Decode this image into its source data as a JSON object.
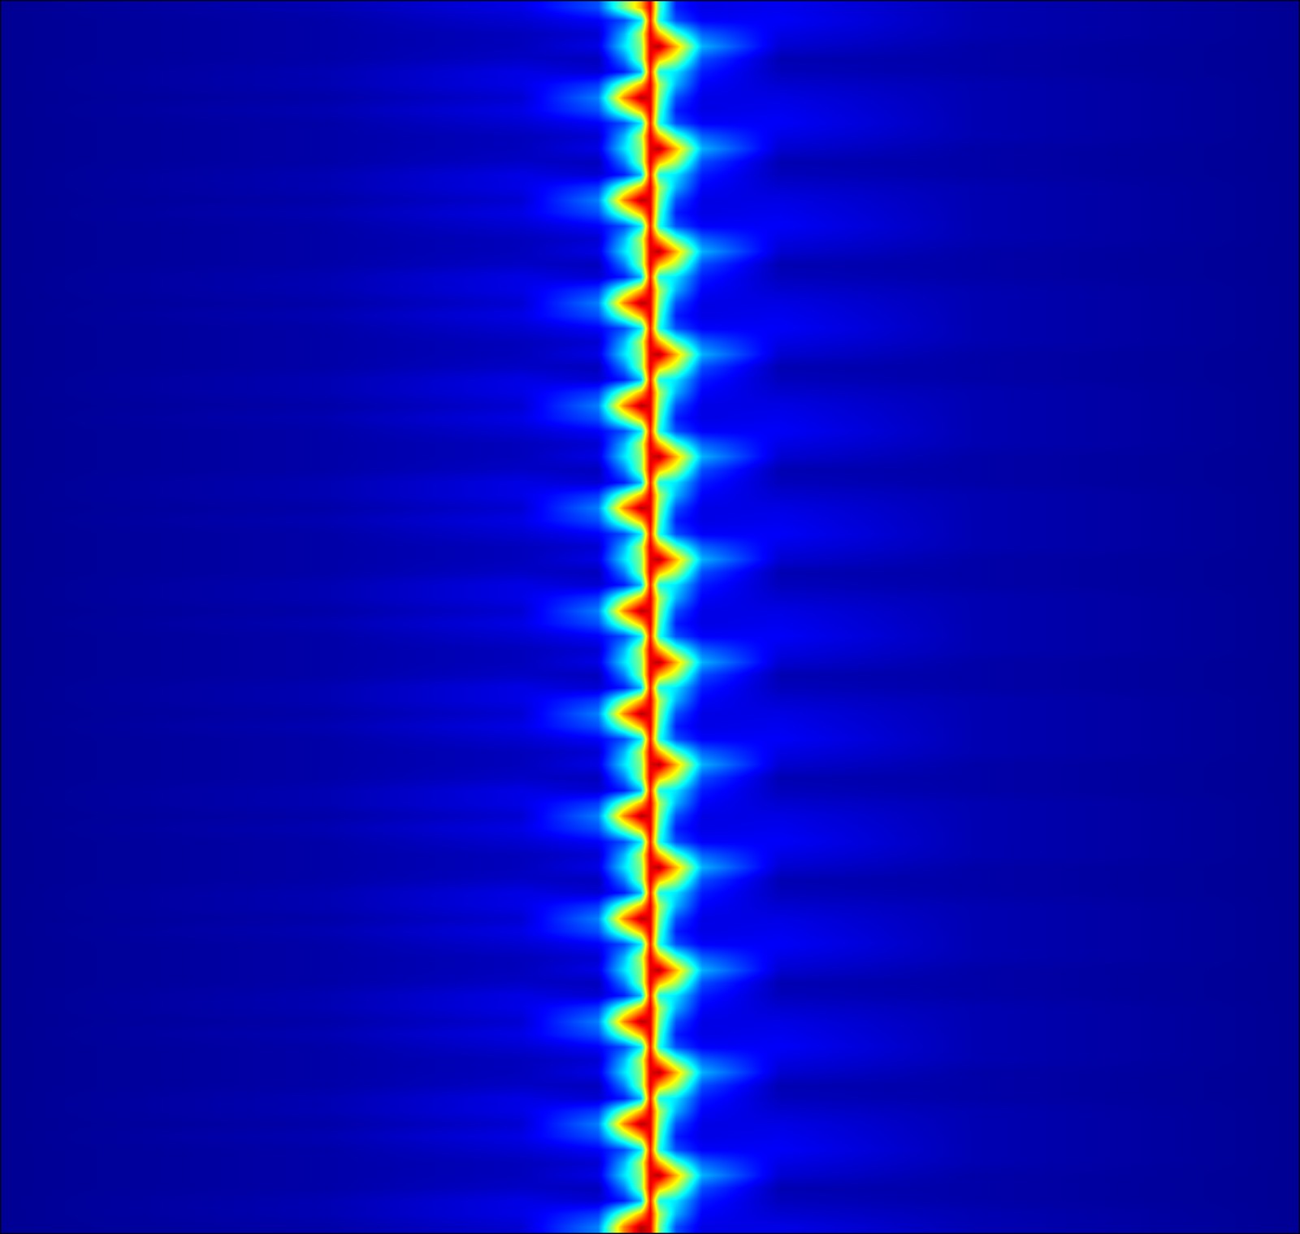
{
  "chart_data": {
    "type": "heatmap",
    "x": [
      0,
      25,
      40,
      46,
      48,
      49.3,
      50,
      50.7,
      52,
      54,
      60,
      75,
      100
    ],
    "y": [
      0,
      1,
      2,
      3,
      4,
      5,
      6,
      7,
      8,
      9,
      10,
      11,
      12,
      13,
      14,
      15,
      16,
      17,
      18,
      19,
      20,
      21,
      22,
      23,
      24,
      25,
      26,
      27,
      28,
      29,
      30,
      31,
      32,
      33,
      34,
      35,
      36,
      37,
      38,
      39,
      40,
      41,
      42,
      43,
      44,
      45,
      46,
      47,
      48,
      49,
      50,
      51,
      52,
      53,
      54,
      55,
      56,
      57,
      58,
      59,
      60,
      61,
      62,
      63,
      64,
      65,
      66,
      67,
      68,
      69,
      70,
      71,
      72,
      73,
      74,
      75,
      76,
      77,
      78,
      79,
      80,
      81,
      82,
      83,
      84,
      85,
      86,
      87,
      88,
      89,
      90,
      91,
      92,
      93,
      94,
      95
    ],
    "z": [
      [
        0.02,
        0.04,
        0.08,
        0.25,
        0.75,
        0.95,
        0.9,
        0.5,
        0.2,
        0.1,
        0.1,
        0.05,
        0.02
      ],
      [
        0.02,
        0.05,
        0.1,
        0.18,
        0.5,
        0.7,
        0.9,
        0.55,
        0.3,
        0.12,
        0.08,
        0.05,
        0.02
      ],
      [
        0.02,
        0.05,
        0.1,
        0.08,
        0.15,
        0.3,
        0.85,
        0.4,
        0.35,
        0.15,
        0.06,
        0.04,
        0.02
      ],
      [
        0.02,
        0.04,
        0.07,
        0.06,
        0.25,
        0.5,
        0.9,
        0.7,
        0.55,
        0.2,
        0.05,
        0.04,
        0.02
      ],
      [
        0.02,
        0.04,
        0.06,
        0.1,
        0.35,
        0.5,
        0.9,
        0.95,
        0.7,
        0.3,
        0.08,
        0.04,
        0.02
      ],
      [
        0.02,
        0.04,
        0.06,
        0.08,
        0.3,
        0.55,
        0.9,
        0.7,
        0.45,
        0.22,
        0.1,
        0.05,
        0.02
      ],
      [
        0.02,
        0.04,
        0.08,
        0.12,
        0.2,
        0.35,
        0.85,
        0.4,
        0.2,
        0.12,
        0.12,
        0.05,
        0.02
      ],
      [
        0.02,
        0.05,
        0.1,
        0.2,
        0.5,
        0.7,
        0.9,
        0.45,
        0.15,
        0.1,
        0.11,
        0.05,
        0.02
      ],
      [
        0.02,
        0.04,
        0.08,
        0.25,
        0.75,
        0.95,
        0.9,
        0.5,
        0.2,
        0.1,
        0.1,
        0.05,
        0.02
      ],
      [
        0.02,
        0.05,
        0.1,
        0.18,
        0.5,
        0.7,
        0.9,
        0.55,
        0.3,
        0.12,
        0.08,
        0.05,
        0.02
      ],
      [
        0.02,
        0.05,
        0.1,
        0.08,
        0.15,
        0.3,
        0.85,
        0.4,
        0.35,
        0.15,
        0.06,
        0.04,
        0.02
      ],
      [
        0.02,
        0.04,
        0.07,
        0.06,
        0.25,
        0.5,
        0.9,
        0.7,
        0.55,
        0.2,
        0.05,
        0.04,
        0.02
      ],
      [
        0.02,
        0.04,
        0.06,
        0.1,
        0.35,
        0.5,
        0.9,
        0.95,
        0.7,
        0.3,
        0.08,
        0.04,
        0.02
      ],
      [
        0.02,
        0.04,
        0.06,
        0.08,
        0.3,
        0.55,
        0.9,
        0.7,
        0.45,
        0.22,
        0.1,
        0.05,
        0.02
      ],
      [
        0.02,
        0.04,
        0.08,
        0.12,
        0.2,
        0.35,
        0.85,
        0.4,
        0.2,
        0.12,
        0.12,
        0.05,
        0.02
      ],
      [
        0.02,
        0.05,
        0.1,
        0.2,
        0.5,
        0.7,
        0.9,
        0.45,
        0.15,
        0.1,
        0.11,
        0.05,
        0.02
      ],
      [
        0.02,
        0.04,
        0.08,
        0.25,
        0.75,
        0.95,
        0.9,
        0.5,
        0.2,
        0.1,
        0.1,
        0.05,
        0.02
      ],
      [
        0.02,
        0.05,
        0.1,
        0.18,
        0.5,
        0.7,
        0.9,
        0.55,
        0.3,
        0.12,
        0.08,
        0.05,
        0.02
      ],
      [
        0.02,
        0.05,
        0.1,
        0.08,
        0.15,
        0.3,
        0.85,
        0.4,
        0.35,
        0.15,
        0.06,
        0.04,
        0.02
      ],
      [
        0.02,
        0.04,
        0.07,
        0.06,
        0.25,
        0.5,
        0.9,
        0.7,
        0.55,
        0.2,
        0.05,
        0.04,
        0.02
      ],
      [
        0.02,
        0.04,
        0.06,
        0.1,
        0.35,
        0.5,
        0.9,
        0.95,
        0.7,
        0.3,
        0.08,
        0.04,
        0.02
      ],
      [
        0.02,
        0.04,
        0.06,
        0.08,
        0.3,
        0.55,
        0.9,
        0.7,
        0.45,
        0.22,
        0.1,
        0.05,
        0.02
      ],
      [
        0.02,
        0.04,
        0.08,
        0.12,
        0.2,
        0.35,
        0.85,
        0.4,
        0.2,
        0.12,
        0.12,
        0.05,
        0.02
      ],
      [
        0.02,
        0.05,
        0.1,
        0.2,
        0.5,
        0.7,
        0.9,
        0.45,
        0.15,
        0.1,
        0.11,
        0.05,
        0.02
      ],
      [
        0.02,
        0.04,
        0.08,
        0.25,
        0.75,
        0.95,
        0.9,
        0.5,
        0.2,
        0.1,
        0.1,
        0.05,
        0.02
      ],
      [
        0.02,
        0.05,
        0.1,
        0.18,
        0.5,
        0.7,
        0.9,
        0.55,
        0.3,
        0.12,
        0.08,
        0.05,
        0.02
      ],
      [
        0.02,
        0.05,
        0.1,
        0.08,
        0.15,
        0.3,
        0.85,
        0.4,
        0.35,
        0.15,
        0.06,
        0.04,
        0.02
      ],
      [
        0.02,
        0.04,
        0.07,
        0.06,
        0.25,
        0.5,
        0.9,
        0.7,
        0.55,
        0.2,
        0.05,
        0.04,
        0.02
      ],
      [
        0.02,
        0.04,
        0.06,
        0.1,
        0.35,
        0.5,
        0.9,
        0.95,
        0.7,
        0.3,
        0.08,
        0.04,
        0.02
      ],
      [
        0.02,
        0.04,
        0.06,
        0.08,
        0.3,
        0.55,
        0.9,
        0.7,
        0.45,
        0.22,
        0.1,
        0.05,
        0.02
      ],
      [
        0.02,
        0.04,
        0.08,
        0.12,
        0.2,
        0.35,
        0.85,
        0.4,
        0.2,
        0.12,
        0.12,
        0.05,
        0.02
      ],
      [
        0.02,
        0.05,
        0.1,
        0.2,
        0.5,
        0.7,
        0.9,
        0.45,
        0.15,
        0.1,
        0.11,
        0.05,
        0.02
      ],
      [
        0.02,
        0.04,
        0.08,
        0.25,
        0.75,
        0.95,
        0.9,
        0.5,
        0.2,
        0.1,
        0.1,
        0.05,
        0.02
      ],
      [
        0.02,
        0.05,
        0.1,
        0.18,
        0.5,
        0.7,
        0.9,
        0.55,
        0.3,
        0.12,
        0.08,
        0.05,
        0.02
      ],
      [
        0.02,
        0.05,
        0.1,
        0.08,
        0.15,
        0.3,
        0.85,
        0.4,
        0.35,
        0.15,
        0.06,
        0.04,
        0.02
      ],
      [
        0.02,
        0.04,
        0.07,
        0.06,
        0.25,
        0.5,
        0.9,
        0.7,
        0.55,
        0.2,
        0.05,
        0.04,
        0.02
      ],
      [
        0.02,
        0.04,
        0.06,
        0.1,
        0.35,
        0.5,
        0.9,
        0.95,
        0.7,
        0.3,
        0.08,
        0.04,
        0.02
      ],
      [
        0.02,
        0.04,
        0.06,
        0.08,
        0.3,
        0.55,
        0.9,
        0.7,
        0.45,
        0.22,
        0.1,
        0.05,
        0.02
      ],
      [
        0.02,
        0.04,
        0.08,
        0.12,
        0.2,
        0.35,
        0.85,
        0.4,
        0.2,
        0.12,
        0.12,
        0.05,
        0.02
      ],
      [
        0.02,
        0.05,
        0.1,
        0.2,
        0.5,
        0.7,
        0.9,
        0.45,
        0.15,
        0.1,
        0.11,
        0.05,
        0.02
      ],
      [
        0.02,
        0.04,
        0.08,
        0.25,
        0.75,
        0.95,
        0.9,
        0.5,
        0.2,
        0.1,
        0.1,
        0.05,
        0.02
      ],
      [
        0.02,
        0.05,
        0.1,
        0.18,
        0.5,
        0.7,
        0.9,
        0.55,
        0.3,
        0.12,
        0.08,
        0.05,
        0.02
      ],
      [
        0.02,
        0.05,
        0.1,
        0.08,
        0.15,
        0.3,
        0.85,
        0.4,
        0.35,
        0.15,
        0.06,
        0.04,
        0.02
      ],
      [
        0.02,
        0.04,
        0.07,
        0.06,
        0.25,
        0.5,
        0.9,
        0.7,
        0.55,
        0.2,
        0.05,
        0.04,
        0.02
      ],
      [
        0.02,
        0.04,
        0.06,
        0.1,
        0.35,
        0.5,
        0.9,
        0.95,
        0.7,
        0.3,
        0.08,
        0.04,
        0.02
      ],
      [
        0.02,
        0.04,
        0.06,
        0.08,
        0.3,
        0.55,
        0.9,
        0.7,
        0.45,
        0.22,
        0.1,
        0.05,
        0.02
      ],
      [
        0.02,
        0.04,
        0.08,
        0.12,
        0.2,
        0.35,
        0.85,
        0.4,
        0.2,
        0.12,
        0.12,
        0.05,
        0.02
      ],
      [
        0.02,
        0.05,
        0.1,
        0.2,
        0.5,
        0.7,
        0.9,
        0.45,
        0.15,
        0.1,
        0.11,
        0.05,
        0.02
      ],
      [
        0.02,
        0.04,
        0.08,
        0.25,
        0.75,
        0.95,
        0.9,
        0.5,
        0.2,
        0.1,
        0.1,
        0.05,
        0.02
      ],
      [
        0.02,
        0.05,
        0.1,
        0.18,
        0.5,
        0.7,
        0.9,
        0.55,
        0.3,
        0.12,
        0.08,
        0.05,
        0.02
      ],
      [
        0.02,
        0.05,
        0.1,
        0.08,
        0.15,
        0.3,
        0.85,
        0.4,
        0.35,
        0.15,
        0.06,
        0.04,
        0.02
      ],
      [
        0.02,
        0.04,
        0.07,
        0.06,
        0.25,
        0.5,
        0.9,
        0.7,
        0.55,
        0.2,
        0.05,
        0.04,
        0.02
      ],
      [
        0.02,
        0.04,
        0.06,
        0.1,
        0.35,
        0.5,
        0.9,
        0.95,
        0.7,
        0.3,
        0.08,
        0.04,
        0.02
      ],
      [
        0.02,
        0.04,
        0.06,
        0.08,
        0.3,
        0.55,
        0.9,
        0.7,
        0.45,
        0.22,
        0.1,
        0.05,
        0.02
      ],
      [
        0.02,
        0.04,
        0.08,
        0.12,
        0.2,
        0.35,
        0.85,
        0.4,
        0.2,
        0.12,
        0.12,
        0.05,
        0.02
      ],
      [
        0.02,
        0.05,
        0.1,
        0.2,
        0.5,
        0.7,
        0.9,
        0.45,
        0.15,
        0.1,
        0.11,
        0.05,
        0.02
      ],
      [
        0.02,
        0.04,
        0.08,
        0.25,
        0.75,
        0.95,
        0.9,
        0.5,
        0.2,
        0.1,
        0.1,
        0.05,
        0.02
      ],
      [
        0.02,
        0.05,
        0.1,
        0.18,
        0.5,
        0.7,
        0.9,
        0.55,
        0.3,
        0.12,
        0.08,
        0.05,
        0.02
      ],
      [
        0.02,
        0.05,
        0.1,
        0.08,
        0.15,
        0.3,
        0.85,
        0.4,
        0.35,
        0.15,
        0.06,
        0.04,
        0.02
      ],
      [
        0.02,
        0.04,
        0.07,
        0.06,
        0.25,
        0.5,
        0.9,
        0.7,
        0.55,
        0.2,
        0.05,
        0.04,
        0.02
      ],
      [
        0.02,
        0.04,
        0.06,
        0.1,
        0.35,
        0.5,
        0.9,
        0.95,
        0.7,
        0.3,
        0.08,
        0.04,
        0.02
      ],
      [
        0.02,
        0.04,
        0.06,
        0.08,
        0.3,
        0.55,
        0.9,
        0.7,
        0.45,
        0.22,
        0.1,
        0.05,
        0.02
      ],
      [
        0.02,
        0.04,
        0.08,
        0.12,
        0.2,
        0.35,
        0.85,
        0.4,
        0.2,
        0.12,
        0.12,
        0.05,
        0.02
      ],
      [
        0.02,
        0.05,
        0.1,
        0.2,
        0.5,
        0.7,
        0.9,
        0.45,
        0.15,
        0.1,
        0.11,
        0.05,
        0.02
      ],
      [
        0.02,
        0.04,
        0.08,
        0.25,
        0.75,
        0.95,
        0.9,
        0.5,
        0.2,
        0.1,
        0.1,
        0.05,
        0.02
      ],
      [
        0.02,
        0.05,
        0.1,
        0.18,
        0.5,
        0.7,
        0.9,
        0.55,
        0.3,
        0.12,
        0.08,
        0.05,
        0.02
      ],
      [
        0.02,
        0.05,
        0.1,
        0.08,
        0.15,
        0.3,
        0.85,
        0.4,
        0.35,
        0.15,
        0.06,
        0.04,
        0.02
      ],
      [
        0.02,
        0.04,
        0.07,
        0.06,
        0.25,
        0.5,
        0.9,
        0.7,
        0.55,
        0.2,
        0.05,
        0.04,
        0.02
      ],
      [
        0.02,
        0.04,
        0.06,
        0.1,
        0.35,
        0.5,
        0.9,
        0.95,
        0.7,
        0.3,
        0.08,
        0.04,
        0.02
      ],
      [
        0.02,
        0.04,
        0.06,
        0.08,
        0.3,
        0.55,
        0.9,
        0.7,
        0.45,
        0.22,
        0.1,
        0.05,
        0.02
      ],
      [
        0.02,
        0.04,
        0.08,
        0.12,
        0.2,
        0.35,
        0.85,
        0.4,
        0.2,
        0.12,
        0.12,
        0.05,
        0.02
      ],
      [
        0.02,
        0.05,
        0.1,
        0.2,
        0.5,
        0.7,
        0.9,
        0.45,
        0.15,
        0.1,
        0.11,
        0.05,
        0.02
      ],
      [
        0.02,
        0.04,
        0.08,
        0.25,
        0.75,
        0.95,
        0.9,
        0.5,
        0.2,
        0.1,
        0.1,
        0.05,
        0.02
      ],
      [
        0.02,
        0.05,
        0.1,
        0.18,
        0.5,
        0.7,
        0.9,
        0.55,
        0.3,
        0.12,
        0.08,
        0.05,
        0.02
      ],
      [
        0.02,
        0.05,
        0.1,
        0.08,
        0.15,
        0.3,
        0.85,
        0.4,
        0.35,
        0.15,
        0.06,
        0.04,
        0.02
      ],
      [
        0.02,
        0.04,
        0.07,
        0.06,
        0.25,
        0.5,
        0.9,
        0.7,
        0.55,
        0.2,
        0.05,
        0.04,
        0.02
      ],
      [
        0.02,
        0.04,
        0.06,
        0.1,
        0.35,
        0.5,
        0.9,
        0.95,
        0.7,
        0.3,
        0.08,
        0.04,
        0.02
      ],
      [
        0.02,
        0.04,
        0.06,
        0.08,
        0.3,
        0.55,
        0.9,
        0.7,
        0.45,
        0.22,
        0.1,
        0.05,
        0.02
      ],
      [
        0.02,
        0.04,
        0.08,
        0.12,
        0.2,
        0.35,
        0.85,
        0.4,
        0.2,
        0.12,
        0.12,
        0.05,
        0.02
      ],
      [
        0.02,
        0.05,
        0.1,
        0.2,
        0.5,
        0.7,
        0.9,
        0.45,
        0.15,
        0.1,
        0.11,
        0.05,
        0.02
      ],
      [
        0.02,
        0.04,
        0.08,
        0.25,
        0.75,
        0.95,
        0.9,
        0.5,
        0.2,
        0.1,
        0.1,
        0.05,
        0.02
      ],
      [
        0.02,
        0.05,
        0.1,
        0.18,
        0.5,
        0.7,
        0.9,
        0.55,
        0.3,
        0.12,
        0.08,
        0.05,
        0.02
      ],
      [
        0.02,
        0.05,
        0.1,
        0.08,
        0.15,
        0.3,
        0.85,
        0.4,
        0.35,
        0.15,
        0.06,
        0.04,
        0.02
      ],
      [
        0.02,
        0.04,
        0.07,
        0.06,
        0.25,
        0.5,
        0.9,
        0.7,
        0.55,
        0.2,
        0.05,
        0.04,
        0.02
      ],
      [
        0.02,
        0.04,
        0.06,
        0.1,
        0.35,
        0.5,
        0.9,
        0.95,
        0.7,
        0.3,
        0.08,
        0.04,
        0.02
      ],
      [
        0.02,
        0.04,
        0.06,
        0.08,
        0.3,
        0.55,
        0.9,
        0.7,
        0.45,
        0.22,
        0.1,
        0.05,
        0.02
      ],
      [
        0.02,
        0.04,
        0.08,
        0.12,
        0.2,
        0.35,
        0.85,
        0.4,
        0.2,
        0.12,
        0.12,
        0.05,
        0.02
      ],
      [
        0.02,
        0.05,
        0.1,
        0.2,
        0.5,
        0.7,
        0.9,
        0.45,
        0.15,
        0.1,
        0.11,
        0.05,
        0.02
      ],
      [
        0.02,
        0.04,
        0.08,
        0.25,
        0.75,
        0.95,
        0.9,
        0.5,
        0.2,
        0.1,
        0.1,
        0.05,
        0.02
      ],
      [
        0.02,
        0.05,
        0.1,
        0.18,
        0.5,
        0.7,
        0.9,
        0.55,
        0.3,
        0.12,
        0.08,
        0.05,
        0.02
      ],
      [
        0.02,
        0.05,
        0.1,
        0.08,
        0.15,
        0.3,
        0.85,
        0.4,
        0.35,
        0.15,
        0.06,
        0.04,
        0.02
      ],
      [
        0.02,
        0.04,
        0.07,
        0.06,
        0.25,
        0.5,
        0.9,
        0.7,
        0.55,
        0.2,
        0.05,
        0.04,
        0.02
      ],
      [
        0.02,
        0.04,
        0.06,
        0.1,
        0.35,
        0.5,
        0.9,
        0.95,
        0.7,
        0.3,
        0.08,
        0.04,
        0.02
      ],
      [
        0.02,
        0.04,
        0.06,
        0.08,
        0.3,
        0.55,
        0.9,
        0.7,
        0.45,
        0.22,
        0.1,
        0.05,
        0.02
      ],
      [
        0.02,
        0.04,
        0.08,
        0.12,
        0.2,
        0.35,
        0.85,
        0.4,
        0.2,
        0.12,
        0.12,
        0.05,
        0.02
      ],
      [
        0.02,
        0.05,
        0.1,
        0.2,
        0.5,
        0.7,
        0.9,
        0.45,
        0.15,
        0.1,
        0.11,
        0.05,
        0.02
      ]
    ],
    "xlim": [
      0,
      100
    ],
    "ylim": [
      -0.5,
      95.5
    ],
    "zlim": [
      0,
      1
    ],
    "tick_labels": false,
    "grid": false
  }
}
